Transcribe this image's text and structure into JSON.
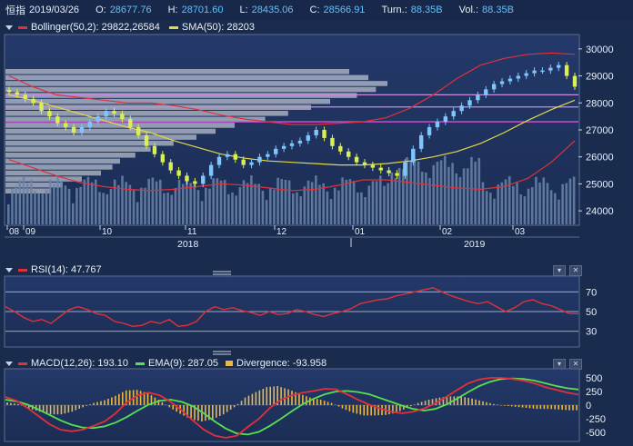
{
  "header": {
    "symbol": "恒指",
    "date": "2019/03/26",
    "open_label": "O:",
    "open": "28677.76",
    "high_label": "H:",
    "high": "28701.60",
    "low_label": "L:",
    "low": "28435.06",
    "close_label": "C:",
    "close": "28566.91",
    "turnover_label": "Turn.:",
    "turnover": "88.35B",
    "volume_label": "Vol.:",
    "volume": "88.35B"
  },
  "main_panel": {
    "bollinger_label": "Bollinger(50,2): 29822,26584",
    "sma_label": "SMA(50): 28203",
    "colors": {
      "bollinger": "#e0313a",
      "sma": "#e4d84a",
      "candle_up": "#7fc6ff",
      "candle_down": "#d9ef55",
      "magenta": "#d64fd8"
    }
  },
  "rsi_panel": {
    "label": "RSI(14): 47.767",
    "ticks": [
      "70",
      "50",
      "30"
    ]
  },
  "macd_panel": {
    "macd_label": "MACD(12,26): 193.10",
    "ema_label": "EMA(9): 287.05",
    "div_label": "Divergence: -93.958",
    "ticks": [
      "500",
      "250",
      "0",
      "-250",
      "-500"
    ],
    "colors": {
      "macd": "#e0313a",
      "ema": "#58e052",
      "divergence": "#e8b84a"
    }
  },
  "axes": {
    "month_labels": [
      "08",
      "09",
      "10",
      "11",
      "12",
      "01",
      "02",
      "03"
    ],
    "year_labels": [
      "2018",
      "2019"
    ]
  },
  "chart_data": {
    "type": "candlestick",
    "price_axis": {
      "ticks": [
        24000,
        25000,
        26000,
        27000,
        28000,
        29000,
        30000
      ],
      "ylim": [
        23500,
        30500
      ]
    },
    "horizontal_lines": [
      27300,
      27850,
      28300
    ],
    "close_series": [
      28400,
      28300,
      28150,
      28000,
      27700,
      27500,
      27250,
      27100,
      26900,
      27100,
      27300,
      27500,
      27700,
      27600,
      27400,
      27100,
      26800,
      26400,
      26100,
      25800,
      25500,
      25300,
      25100,
      25000,
      25300,
      25700,
      26000,
      26100,
      25900,
      25700,
      25800,
      26000,
      26100,
      26300,
      26400,
      26500,
      26600,
      26800,
      27000,
      26700,
      26400,
      26200,
      26000,
      25800,
      25700,
      25600,
      25500,
      25400,
      25300,
      25800,
      26300,
      26800,
      27100,
      27300,
      27500,
      27700,
      27900,
      28100,
      28300,
      28500,
      28700,
      28800,
      28900,
      29000,
      29100,
      29200,
      29200,
      29300,
      29400,
      29000,
      28600
    ],
    "sma50": [
      28300,
      28100,
      27850,
      27600,
      27350,
      27100,
      26900,
      26600,
      26350,
      26100,
      25950,
      25850,
      25800,
      25750,
      25700,
      25700,
      25750,
      25850,
      26000,
      26200,
      26500,
      26900,
      27350,
      27750,
      28100
    ],
    "bollinger_upper": [
      29000,
      28600,
      28300,
      28200,
      28100,
      28000,
      28000,
      27900,
      27750,
      27550,
      27400,
      27300,
      27200,
      27200,
      27250,
      27300,
      27450,
      27800,
      28300,
      28900,
      29400,
      29650,
      29800,
      29850,
      29800
    ],
    "bollinger_lower": [
      25900,
      25600,
      25300,
      25050,
      24900,
      24800,
      24750,
      24800,
      24900,
      25000,
      24950,
      24850,
      24750,
      24800,
      24950,
      25150,
      25150,
      25050,
      24950,
      24850,
      24800,
      24900,
      25200,
      25800,
      26600
    ],
    "volume_profile": [
      0.9,
      0.95,
      1.0,
      0.97,
      0.92,
      0.85,
      0.8,
      0.74,
      0.68,
      0.6,
      0.55,
      0.5,
      0.44,
      0.38,
      0.34,
      0.3,
      0.28,
      0.25,
      0.2,
      0.15,
      0.12
    ],
    "rsi": [
      55,
      50,
      44,
      40,
      42,
      38,
      45,
      52,
      55,
      52,
      48,
      46,
      40,
      38,
      35,
      36,
      40,
      38,
      42,
      35,
      36,
      40,
      50,
      55,
      52,
      54,
      51,
      49,
      46,
      50,
      47,
      48,
      52,
      50,
      47,
      45,
      48,
      50,
      53,
      58,
      60,
      62,
      63,
      66,
      68,
      70,
      72,
      74,
      70,
      66,
      63,
      60,
      58,
      60,
      55,
      50,
      54,
      60,
      62,
      58,
      56,
      52,
      48,
      47.767
    ]
  },
  "macd_data": {
    "ylim": [
      -650,
      650
    ],
    "macd": [
      150,
      80,
      -50,
      -200,
      -350,
      -450,
      -480,
      -450,
      -380,
      -300,
      -150,
      50,
      180,
      230,
      180,
      60,
      -100,
      -280,
      -450,
      -560,
      -600,
      -560,
      -400,
      -250,
      -50,
      100,
      180,
      230,
      260,
      300,
      290,
      200,
      100,
      10,
      -60,
      -120,
      -150,
      -120,
      -60,
      30,
      150,
      280,
      400,
      470,
      500,
      500,
      480,
      450,
      400,
      330,
      280,
      230,
      193.1
    ],
    "ema": [
      100,
      70,
      10,
      -80,
      -180,
      -280,
      -360,
      -410,
      -420,
      -390,
      -320,
      -220,
      -100,
      10,
      80,
      100,
      60,
      -20,
      -150,
      -300,
      -430,
      -520,
      -540,
      -490,
      -380,
      -250,
      -110,
      20,
      120,
      200,
      250,
      260,
      240,
      200,
      130,
      60,
      -10,
      -70,
      -100,
      -70,
      10,
      120,
      240,
      350,
      430,
      480,
      490,
      480,
      450,
      400,
      350,
      310,
      287.05
    ],
    "divergence": [
      50,
      20,
      -60,
      -120,
      -170,
      -170,
      -120,
      -40,
      40,
      90,
      170,
      270,
      280,
      220,
      100,
      -40,
      -160,
      -260,
      -300,
      -260,
      -170,
      -40,
      140,
      240,
      330,
      350,
      290,
      210,
      140,
      100,
      40,
      -60,
      -140,
      -190,
      -190,
      -180,
      -140,
      -50,
      40,
      100,
      140,
      160,
      160,
      120,
      70,
      20,
      -10,
      -30,
      -50,
      -70,
      -70,
      -80,
      -93.958
    ]
  }
}
